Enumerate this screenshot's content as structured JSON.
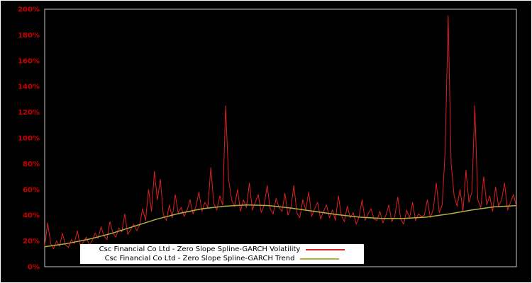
{
  "page": {
    "background": "#000000",
    "outer_border": "#ffffff"
  },
  "chart_data": {
    "type": "line",
    "title": "",
    "xlabel": "",
    "ylabel": "",
    "x_axis": {
      "tick_labels_visible": false
    },
    "y_axis": {
      "min": 0,
      "max": 200,
      "step": 20,
      "tick_labels": [
        "0%",
        "20%",
        "40%",
        "60%",
        "80%",
        "100%",
        "120%",
        "140%",
        "160%",
        "180%",
        "200%"
      ],
      "label_color": "#cc0000"
    },
    "plot": {
      "background": "#000000",
      "frame_color": "#c8c8c8",
      "grid": false
    },
    "legend": {
      "position": "bottom-center",
      "background": "#ffffff",
      "text_color": "#000000"
    },
    "series": [
      {
        "name": "Csc Financial Co Ltd - Zero Slope Spline-GARCH Volatility",
        "color": "#dd2020",
        "width": 1,
        "values": [
          16,
          34,
          18,
          14,
          20,
          16,
          26,
          17,
          15,
          21,
          18,
          28,
          16,
          19,
          23,
          17,
          20,
          26,
          22,
          31,
          24,
          21,
          35,
          26,
          23,
          30,
          27,
          41,
          25,
          29,
          33,
          28,
          32,
          45,
          36,
          60,
          43,
          74,
          52,
          68,
          40,
          36,
          48,
          38,
          56,
          42,
          46,
          39,
          44,
          52,
          41,
          47,
          58,
          43,
          50,
          46,
          77,
          49,
          44,
          55,
          48,
          125,
          68,
          52,
          47,
          60,
          43,
          52,
          46,
          65,
          44,
          50,
          56,
          42,
          48,
          63,
          45,
          41,
          53,
          46,
          43,
          57,
          40,
          46,
          63,
          42,
          38,
          52,
          44,
          58,
          39,
          45,
          50,
          37,
          43,
          48,
          38,
          44,
          36,
          55,
          40,
          35,
          47,
          38,
          42,
          33,
          39,
          52,
          36,
          41,
          45,
          37,
          36,
          43,
          34,
          40,
          48,
          35,
          39,
          54,
          37,
          33,
          44,
          38,
          50,
          36,
          41,
          39,
          40,
          52,
          38,
          45,
          65,
          42,
          48,
          90,
          195,
          80,
          55,
          47,
          60,
          43,
          75,
          50,
          58,
          125,
          52,
          46,
          70,
          48,
          55,
          43,
          62,
          47,
          52,
          65,
          44,
          50,
          56,
          47
        ]
      },
      {
        "name": "Csc Financial Co Ltd - Zero Slope Spline-GARCH Trend",
        "color": "#b0b040",
        "width": 1.5,
        "values": [
          15.5,
          18,
          21.5,
          26,
          31.5,
          37,
          41.5,
          45,
          47,
          48,
          47.5,
          45.5,
          43,
          40.5,
          38.5,
          37.5,
          37.5,
          38.5,
          41,
          44,
          46.5,
          47.5
        ]
      }
    ]
  }
}
